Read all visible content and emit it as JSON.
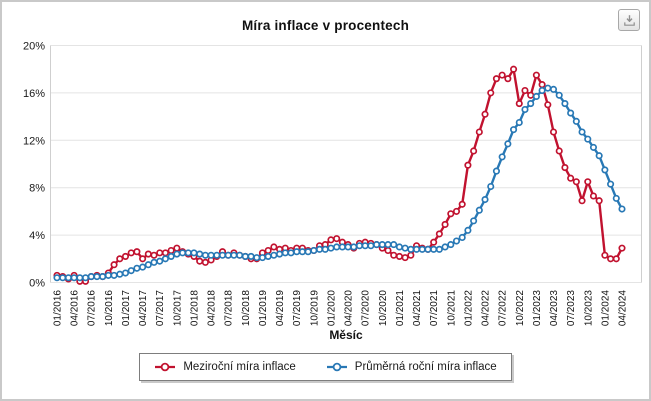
{
  "panel": {
    "background": "#ffffff",
    "border_color": "#c9c9c9"
  },
  "toolbar": {
    "download_icon": "download-icon"
  },
  "chart_data": {
    "type": "line",
    "title": "Míra inflace v procentech",
    "xlabel": "Měsíc",
    "ylabel": "",
    "ylim": [
      0,
      20
    ],
    "grid": true,
    "grid_color": "#e4e4e4",
    "axis_color": "#cfcfcf",
    "yticklabels": [
      "0%",
      "4%",
      "8%",
      "12%",
      "16%",
      "20%"
    ],
    "ytick_values": [
      0,
      4,
      8,
      12,
      16,
      20
    ],
    "xticklabels": [
      "01/2016",
      "04/2016",
      "07/2016",
      "10/2016",
      "01/2017",
      "04/2017",
      "07/2017",
      "10/2017",
      "01/2018",
      "04/2018",
      "07/2018",
      "10/2018",
      "01/2019",
      "04/2019",
      "07/2019",
      "10/2019",
      "01/2020",
      "04/2020",
      "07/2020",
      "10/2020",
      "01/2021",
      "04/2021",
      "07/2021",
      "10/2021",
      "01/2022",
      "04/2022",
      "07/2022",
      "10/2022",
      "01/2023",
      "04/2023",
      "07/2023",
      "10/2023",
      "01/2024",
      "04/2024"
    ],
    "xtick_every_n_points": 3,
    "legend_position": "bottom",
    "series": [
      {
        "name": "Meziroční míra inflace",
        "color": "#c1122f",
        "values": [
          0.6,
          0.5,
          0.3,
          0.6,
          0.1,
          0.1,
          0.5,
          0.6,
          0.5,
          0.8,
          1.5,
          2.0,
          2.2,
          2.5,
          2.6,
          2.0,
          2.4,
          2.3,
          2.5,
          2.5,
          2.7,
          2.9,
          2.6,
          2.4,
          2.2,
          1.8,
          1.7,
          1.9,
          2.2,
          2.6,
          2.3,
          2.5,
          2.3,
          2.2,
          2.0,
          2.0,
          2.5,
          2.7,
          3.0,
          2.8,
          2.9,
          2.7,
          2.9,
          2.9,
          2.7,
          2.7,
          3.1,
          3.2,
          3.6,
          3.7,
          3.4,
          3.2,
          2.9,
          3.3,
          3.4,
          3.3,
          3.2,
          2.9,
          2.7,
          2.3,
          2.2,
          2.1,
          2.3,
          3.1,
          2.9,
          2.8,
          3.4,
          4.1,
          4.9,
          5.8,
          6.0,
          6.6,
          9.9,
          11.1,
          12.7,
          14.2,
          16.0,
          17.2,
          17.5,
          17.2,
          18.0,
          15.1,
          16.2,
          15.8,
          17.5,
          16.7,
          15.0,
          12.7,
          11.1,
          9.7,
          8.8,
          8.5,
          6.9,
          8.5,
          7.3,
          6.9,
          2.3,
          2.0,
          2.0,
          2.9
        ]
      },
      {
        "name": "Průměrná roční míra inflace",
        "color": "#2878b5",
        "values": [
          0.4,
          0.4,
          0.4,
          0.4,
          0.4,
          0.4,
          0.5,
          0.5,
          0.5,
          0.6,
          0.6,
          0.7,
          0.8,
          1.0,
          1.2,
          1.3,
          1.5,
          1.7,
          1.8,
          2.0,
          2.2,
          2.4,
          2.5,
          2.5,
          2.5,
          2.4,
          2.3,
          2.3,
          2.3,
          2.3,
          2.3,
          2.3,
          2.3,
          2.2,
          2.2,
          2.1,
          2.1,
          2.2,
          2.3,
          2.4,
          2.5,
          2.5,
          2.6,
          2.6,
          2.6,
          2.7,
          2.8,
          2.8,
          2.9,
          3.0,
          3.0,
          3.0,
          3.0,
          3.1,
          3.1,
          3.1,
          3.2,
          3.2,
          3.2,
          3.2,
          3.0,
          2.9,
          2.8,
          2.8,
          2.8,
          2.8,
          2.8,
          2.8,
          3.0,
          3.2,
          3.5,
          3.8,
          4.4,
          5.2,
          6.1,
          7.0,
          8.1,
          9.4,
          10.6,
          11.7,
          12.9,
          13.5,
          14.6,
          15.1,
          15.7,
          16.2,
          16.4,
          16.3,
          15.8,
          15.1,
          14.3,
          13.6,
          12.7,
          12.1,
          11.4,
          10.7,
          9.5,
          8.3,
          7.1,
          6.2
        ]
      }
    ]
  }
}
